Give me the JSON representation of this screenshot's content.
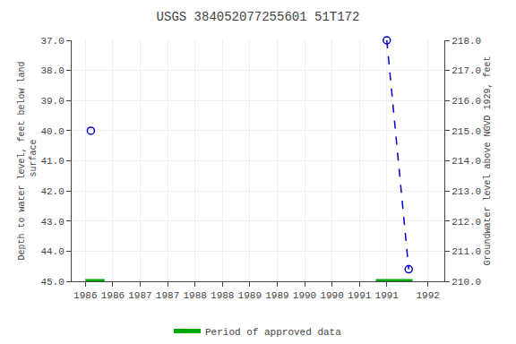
{
  "chart_data": {
    "type": "scatter",
    "title": "USGS 384052077255601 51T172",
    "y_label": "Depth to water level, feet below land\n surface",
    "y2_label": "Groundwater level above NGVD 1929, feet",
    "xlim": [
      1985.5,
      1992.3
    ],
    "xticks": [
      {
        "value": 1985.75,
        "label": "1986"
      },
      {
        "value": 1986.25,
        "label": "1986"
      },
      {
        "value": 1986.75,
        "label": "1987"
      },
      {
        "value": 1987.25,
        "label": "1987"
      },
      {
        "value": 1987.75,
        "label": "1988"
      },
      {
        "value": 1988.25,
        "label": "1988"
      },
      {
        "value": 1988.75,
        "label": "1989"
      },
      {
        "value": 1989.25,
        "label": "1989"
      },
      {
        "value": 1989.75,
        "label": "1990"
      },
      {
        "value": 1990.25,
        "label": "1990"
      },
      {
        "value": 1990.75,
        "label": "1991"
      },
      {
        "value": 1991.25,
        "label": "1991"
      },
      {
        "value": 1992.0,
        "label": "1992"
      }
    ],
    "ylim": [
      45.0,
      37.0
    ],
    "yticks": [
      {
        "value": 37.0,
        "label": "37.0"
      },
      {
        "value": 38.0,
        "label": "38.0"
      },
      {
        "value": 39.0,
        "label": "39.0"
      },
      {
        "value": 40.0,
        "label": "40.0"
      },
      {
        "value": 41.0,
        "label": "41.0"
      },
      {
        "value": 42.0,
        "label": "42.0"
      },
      {
        "value": 43.0,
        "label": "43.0"
      },
      {
        "value": 44.0,
        "label": "44.0"
      },
      {
        "value": 45.0,
        "label": "45.0"
      }
    ],
    "y2lim": [
      210.0,
      218.0
    ],
    "y2ticks": [
      {
        "value": 210.0,
        "label": "210.0"
      },
      {
        "value": 211.0,
        "label": "211.0"
      },
      {
        "value": 212.0,
        "label": "212.0"
      },
      {
        "value": 213.0,
        "label": "213.0"
      },
      {
        "value": 214.0,
        "label": "214.0"
      },
      {
        "value": 215.0,
        "label": "215.0"
      },
      {
        "value": 216.0,
        "label": "216.0"
      },
      {
        "value": 217.0,
        "label": "217.0"
      },
      {
        "value": 218.0,
        "label": "218.0"
      }
    ],
    "grid": true,
    "legend": "bottom",
    "series": [
      {
        "type": "line",
        "line_style": "dashed",
        "color": "#0000cc",
        "x": [
          1991.25,
          1991.65
        ],
        "values": [
          37.0,
          44.6
        ]
      },
      {
        "type": "scatter",
        "marker": "open circle",
        "color": "#0000cc",
        "x": [
          1985.85,
          1991.25,
          1991.65
        ],
        "values": [
          40.0,
          37.0,
          44.6
        ]
      },
      {
        "type": "line",
        "line_style": "solid",
        "color": "#00aa00",
        "name": "Period of approved data",
        "x": [
          1985.75,
          1986.1,
          null,
          1991.05,
          1991.72
        ],
        "values": [
          45.0,
          45.0,
          null,
          45.0,
          45.0
        ]
      }
    ]
  }
}
